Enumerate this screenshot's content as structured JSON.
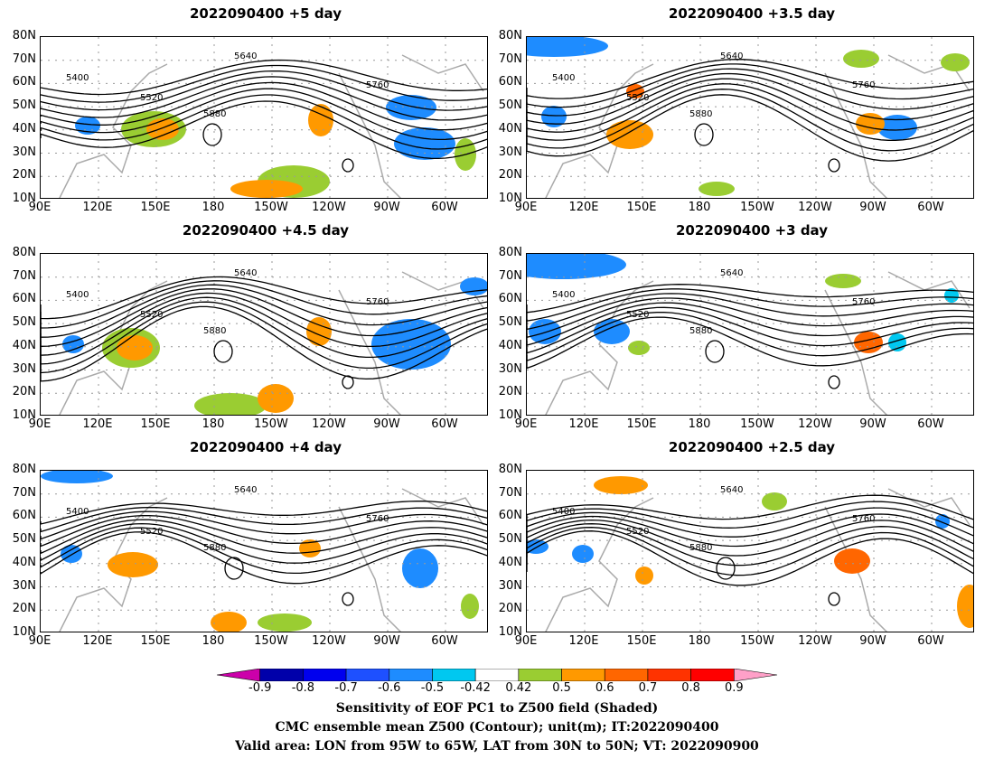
{
  "panels": [
    {
      "title": "2022090400 +5 day",
      "lead_days": 5
    },
    {
      "title": "2022090400 +3.5 day",
      "lead_days": 3.5
    },
    {
      "title": "2022090400 +4.5 day",
      "lead_days": 4.5
    },
    {
      "title": "2022090400 +3 day",
      "lead_days": 3
    },
    {
      "title": "2022090400 +4 day",
      "lead_days": 4
    },
    {
      "title": "2022090400 +2.5 day",
      "lead_days": 2.5
    }
  ],
  "axes": {
    "lat_labels": [
      "80N",
      "70N",
      "60N",
      "50N",
      "40N",
      "30N",
      "20N",
      "10N"
    ],
    "lon_labels": [
      "90E",
      "120E",
      "150E",
      "180",
      "150W",
      "120W",
      "90W",
      "60W"
    ]
  },
  "contour_labels": [
    "5400",
    "5520",
    "5640",
    "5760",
    "5880"
  ],
  "colorbar": {
    "ticks": [
      "-0.9",
      "-0.8",
      "-0.7",
      "-0.6",
      "-0.5",
      "-0.42",
      "0.42",
      "0.5",
      "0.6",
      "0.7",
      "0.8",
      "0.9"
    ],
    "colors": [
      "#cc00aa",
      "#0000aa",
      "#0000ee",
      "#1e50ff",
      "#1e8cff",
      "#00c8f0",
      "#ffffff",
      "#9acd32",
      "#ff9900",
      "#ff6600",
      "#ff3300",
      "#ff0000",
      "#ffa0c8"
    ]
  },
  "caption": {
    "line1": "Sensitivity of EOF PC1 to Z500 field (Shaded)",
    "line2": "CMC ensemble mean Z500 (Contour); unit(m); IT:2022090400",
    "line3": "Valid area: LON from 95W to 65W, LAT from 30N to 50N; VT: 2022090900"
  }
}
